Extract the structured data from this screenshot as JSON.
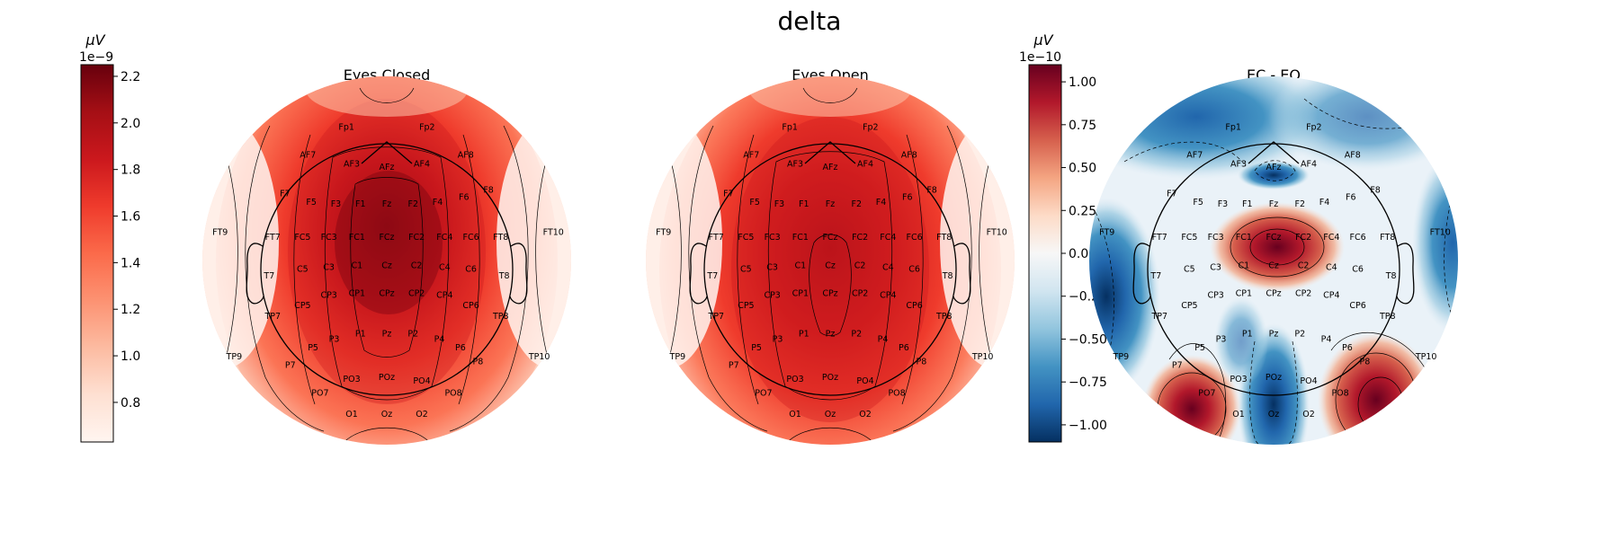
{
  "figure": {
    "title": "delta",
    "panels": [
      {
        "id": "ec",
        "title": "Eyes Closed"
      },
      {
        "id": "eo",
        "title": "Eyes Open"
      },
      {
        "id": "diff",
        "title": "EC - EO"
      }
    ],
    "colorbars": [
      {
        "id": "cb-power",
        "label": "μV",
        "multiplier": "1e−9",
        "range": [
          0.63,
          2.25
        ],
        "ticks": [
          0.8,
          1.0,
          1.2,
          1.4,
          1.6,
          1.8,
          2.0,
          2.2
        ],
        "tick_labels": [
          "0.8",
          "1.0",
          "1.2",
          "1.4",
          "1.6",
          "1.8",
          "2.0",
          "2.2"
        ],
        "colormap": "Reds"
      },
      {
        "id": "cb-diff",
        "label": "μV",
        "multiplier": "1e−10",
        "range": [
          -1.1,
          1.1
        ],
        "ticks": [
          1.0,
          0.75,
          0.5,
          0.25,
          0.0,
          -0.25,
          -0.5,
          -0.75,
          -1.0
        ],
        "tick_labels": [
          "1.00",
          "0.75",
          "0.50",
          "0.25",
          "0.00",
          "−0.25",
          "−0.50",
          "−0.75",
          "−1.00"
        ],
        "colormap": "RdBu_r"
      }
    ]
  },
  "chart_data": {
    "type": "heatmap",
    "subtype": "EEG topographic maps",
    "band": "delta",
    "unit": "μV",
    "electrodes": [
      "Fp1",
      "Fp2",
      "AF7",
      "AF3",
      "AFz",
      "AF4",
      "AF8",
      "F7",
      "F5",
      "F3",
      "F1",
      "Fz",
      "F2",
      "F4",
      "F6",
      "F8",
      "FT9",
      "FT7",
      "FC5",
      "FC3",
      "FC1",
      "FCz",
      "FC2",
      "FC4",
      "FC6",
      "FT8",
      "FT10",
      "T7",
      "C5",
      "C3",
      "C1",
      "Cz",
      "C2",
      "C4",
      "C6",
      "T8",
      "TP7",
      "CP5",
      "CP3",
      "CP1",
      "CPz",
      "CP2",
      "CP4",
      "CP6",
      "TP8",
      "TP9",
      "P7",
      "P5",
      "P3",
      "P1",
      "Pz",
      "P2",
      "P4",
      "P6",
      "P8",
      "TP10",
      "PO7",
      "PO3",
      "POz",
      "PO4",
      "PO8",
      "O1",
      "Oz",
      "O2"
    ],
    "maps": [
      {
        "title": "Eyes Closed",
        "scale": "1e-9",
        "range": [
          0.63,
          2.25
        ],
        "peak_region": "FCz",
        "peak_value": 2.2,
        "min_region": "FT9/FT10",
        "min_value": 0.65
      },
      {
        "title": "Eyes Open",
        "scale": "1e-9",
        "range": [
          0.63,
          2.25
        ],
        "peak_region": "Cz",
        "peak_value": 2.0,
        "min_region": "FT9/FT10",
        "min_value": 0.65
      },
      {
        "title": "EC - EO",
        "scale": "1e-10",
        "range": [
          -1.1,
          1.1
        ],
        "positive_regions": [
          "FCz",
          "PO7",
          "P8"
        ],
        "negative_regions": [
          "AFz",
          "Oz",
          "TP9",
          "FT10",
          "FP1"
        ],
        "max_value": 1.05,
        "min_value": -1.05
      }
    ]
  }
}
